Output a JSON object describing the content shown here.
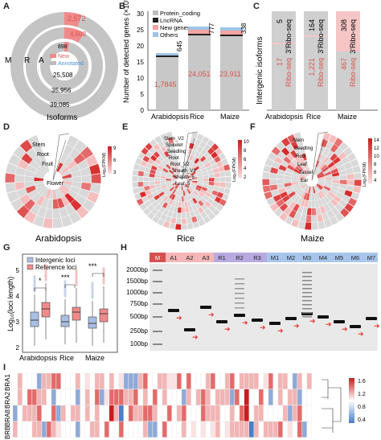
{
  "panels": {
    "A": "A",
    "B": "B",
    "C": "C",
    "D": "D",
    "E": "E",
    "F": "F",
    "G": "G",
    "H": "H",
    "I": "I"
  },
  "panel_a": {
    "ring_letters": [
      "M",
      "R",
      "A"
    ],
    "new_values": [
      "2,572",
      "4,602",
      "898"
    ],
    "annotated_values": [
      "25,508",
      "35,956",
      "39,085"
    ],
    "legend_new": "New",
    "legend_annotated": "Annotated",
    "caption": "Isoforms",
    "colors": {
      "new": "#f08a8a",
      "annotated": "#bdbdbd"
    }
  },
  "panel_b": {
    "ylabel": "Number of detected genes (×10³)",
    "legend": [
      "Protein_coding",
      "LncRNA",
      "New genes",
      "Others"
    ],
    "legend_colors": [
      "#bdbdbd",
      "#222222",
      "#f3a3a3",
      "#9ec4e6"
    ],
    "yticks": [
      "0",
      "5",
      "10",
      "15",
      "20",
      "25",
      "30"
    ],
    "categories": [
      "Arabidopsis",
      "Rice",
      "Maize"
    ],
    "protein_labels": [
      "1,7845",
      "24,051",
      "23,911"
    ],
    "top_labels": [
      "645",
      "777",
      "338"
    ]
  },
  "panel_c": {
    "ylabel": "Intergenic isoforms",
    "categories": [
      "Arabidopsis",
      "Rice",
      "Maize"
    ],
    "top_values": [
      "5",
      "164",
      "308"
    ],
    "top_label": "3'Ribo-seq",
    "bottom_values": [
      "17",
      "1,221",
      "467"
    ],
    "bottom_label": "Ribo-seq",
    "colors": {
      "top": "#cfcfcf",
      "bottom": "#f6c6c6"
    }
  },
  "panel_d": {
    "caption": "Arabidopsis",
    "tissues": [
      "Stem",
      "Root",
      "Fruit",
      "Flower"
    ],
    "legend_title": "Log₂(FPKM)",
    "legend_ticks": [
      "9",
      "6",
      "3"
    ]
  },
  "panel_e": {
    "caption": "Rice",
    "tissues": [
      "Stem_V2",
      "Spikelet",
      "Seedling",
      "Root",
      "Root_V2",
      "Sheath_V2",
      "Sheath_5",
      "Leaf_5"
    ],
    "legend_title": "Log₂(FPKM)",
    "legend_ticks": [
      "10",
      "8",
      "6",
      "4",
      "2"
    ]
  },
  "panel_f": {
    "caption": "Maize",
    "tissues": [
      "Stem",
      "Seedling",
      "Root",
      "Leaf",
      "Tassel",
      "Ear"
    ],
    "legend_title": "Log₂(FPKM)",
    "legend_ticks": [
      "14",
      "12",
      "10",
      "8",
      "6",
      "4"
    ]
  },
  "panel_g": {
    "ylabel": "Log₁₀(loci length)",
    "legend": [
      "Intergenic loci",
      "Reference loci"
    ],
    "legend_colors": [
      "#a9bfe3",
      "#f08a8a"
    ],
    "yticks": [
      "2",
      "3",
      "4",
      "5"
    ],
    "categories": [
      "Arabidopsis",
      "Rice",
      "Maize"
    ],
    "significance": [
      "*",
      "***",
      "***"
    ]
  },
  "panel_h": {
    "ladder": [
      "2000bp",
      "1500bp",
      "1000bp",
      "750bp",
      "500bp",
      "250bp",
      "100bp"
    ],
    "lanes": [
      "M",
      "A1",
      "A2",
      "A3",
      "R1",
      "R2",
      "R3",
      "M1",
      "M2",
      "M3",
      "M4",
      "M5",
      "M6",
      "M7"
    ]
  },
  "panel_i": {
    "rows": [
      "BRA1",
      "BRA2",
      "BRA8",
      "BRB"
    ],
    "legend_ticks": [
      "1.6",
      "1.2",
      "0.8",
      "0.4"
    ]
  }
}
